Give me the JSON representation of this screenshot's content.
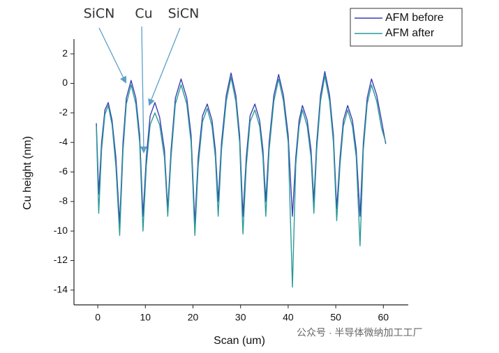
{
  "chart_data": {
    "type": "line",
    "x_label": "Scan (um)",
    "y_label": "Cu height (nm)",
    "annotations": [
      "SiCN",
      "Cu",
      "SiCN"
    ],
    "watermark": "公众号 · 半导体微纳加工工厂",
    "xlim": [
      -5,
      64.5
    ],
    "ylim": [
      -15,
      3
    ],
    "xticks": [
      0,
      10,
      20,
      30,
      40,
      50,
      60
    ],
    "yticks": [
      -14,
      -12,
      -10,
      -8,
      -6,
      -4,
      -2,
      0,
      2
    ],
    "legend": "upper right",
    "x": [
      -0.3,
      0.2,
      0.8,
      1.5,
      2.2,
      3,
      3.8,
      4.6,
      5.3,
      6,
      7,
      8,
      8.8,
      9.5,
      10.2,
      11,
      12,
      13,
      14,
      14.7,
      15.4,
      16.3,
      17.5,
      18.7,
      19.6,
      20.4,
      21.1,
      22,
      23,
      24,
      24.7,
      25.3,
      26,
      27,
      28,
      29,
      29.8,
      30.5,
      31.2,
      32,
      33,
      34,
      34.7,
      35.3,
      36,
      37,
      38,
      39,
      40,
      40.9,
      41.6,
      42.3,
      43,
      44,
      44.8,
      45.4,
      46,
      46.8,
      47.7,
      48.7,
      49.5,
      50.2,
      50.9,
      51.6,
      52.5,
      53.5,
      54.3,
      55.1,
      55.8,
      56.6,
      57.5,
      58.6,
      59.6,
      60.5
    ],
    "series": [
      {
        "name": "AFM before",
        "color": "#3b3fb2",
        "values": [
          -2.7,
          -7.5,
          -4,
          -1.8,
          -1.3,
          -2.5,
          -5,
          -9.5,
          -4,
          -1,
          0.2,
          -1,
          -3.5,
          -9,
          -5,
          -2.2,
          -1.3,
          -2.3,
          -4.5,
          -8.5,
          -4.5,
          -1,
          0.3,
          -1,
          -3.5,
          -9.5,
          -5,
          -2.2,
          -1.4,
          -2.5,
          -4.5,
          -8,
          -4,
          -0.8,
          0.7,
          -0.8,
          -3.5,
          -9,
          -5,
          -2.2,
          -1.4,
          -2.5,
          -4.5,
          -8,
          -4,
          -0.8,
          0.6,
          -0.8,
          -3.5,
          -9,
          -5,
          -2.5,
          -1.5,
          -2.5,
          -4.5,
          -8,
          -4,
          -0.8,
          0.8,
          -0.8,
          -3.5,
          -8.5,
          -5,
          -2.5,
          -1.5,
          -2.5,
          -4.5,
          -9,
          -4,
          -1,
          0.3,
          -0.8,
          -2.5,
          -4.1
        ]
      },
      {
        "name": "AFM after",
        "color": "#2a9a98",
        "values": [
          -2.9,
          -8.8,
          -4.5,
          -2.1,
          -1.5,
          -2.8,
          -5.6,
          -10.3,
          -4.6,
          -1.4,
          -0.1,
          -1.4,
          -4,
          -10,
          -5.6,
          -2.8,
          -2,
          -2.8,
          -5,
          -9,
          -5,
          -1.4,
          -0.1,
          -1.4,
          -4,
          -10.3,
          -5.6,
          -2.6,
          -1.7,
          -2.9,
          -5,
          -9,
          -4.5,
          -1.2,
          0.4,
          -1.2,
          -4,
          -10.2,
          -5.6,
          -2.6,
          -1.8,
          -2.9,
          -5,
          -9,
          -4.5,
          -1.2,
          0.3,
          -1.2,
          -4,
          -13.8,
          -5.5,
          -2.9,
          -1.8,
          -2.9,
          -5,
          -8.8,
          -4.5,
          -1.2,
          0.5,
          -1.2,
          -4,
          -9.3,
          -5.5,
          -2.9,
          -1.8,
          -2.9,
          -5,
          -11,
          -4.5,
          -1.4,
          -0.1,
          -1.2,
          -3,
          -4
        ]
      }
    ]
  }
}
